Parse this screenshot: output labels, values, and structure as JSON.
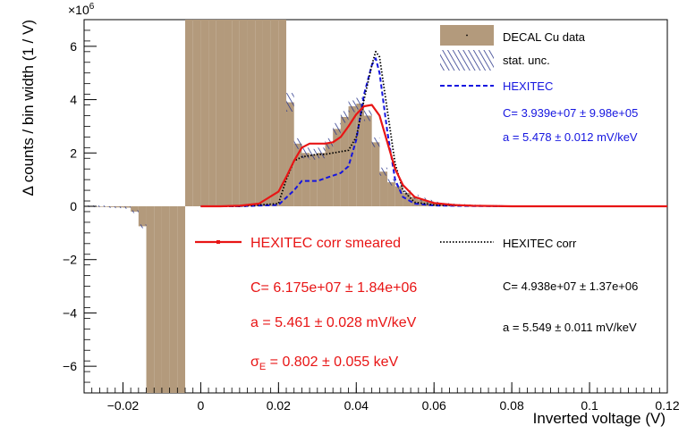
{
  "chart_data": {
    "type": "histogram",
    "xlabel": "Inverted voltage (V)",
    "ylabel": "Δ counts / bin width (1 / V)",
    "y_exponent_label": "×10",
    "y_exponent_power": "6",
    "xlim": [
      -0.03,
      0.12
    ],
    "ylim": [
      -7.0,
      7.0
    ],
    "y_unit_scale": 1000000,
    "x_ticks": [
      -0.02,
      0,
      0.02,
      0.04,
      0.06,
      0.08,
      0.1,
      0.12
    ],
    "x_tick_labels": [
      "−0.02",
      "0",
      "0.02",
      "0.04",
      "0.06",
      "0.08",
      "0.1",
      "0.12"
    ],
    "y_ticks": [
      -6,
      -4,
      -2,
      0,
      2,
      4,
      6
    ],
    "y_tick_labels": [
      "−6",
      "−4",
      "−2",
      "0",
      "2",
      "4",
      "6"
    ],
    "data_histogram": {
      "name": "DECAL Cu data",
      "color": "#b39a7c",
      "bin_width": 0.002,
      "bin_starts": [
        -0.03,
        -0.028,
        -0.026,
        -0.024,
        -0.022,
        -0.02,
        -0.018,
        -0.016,
        -0.014,
        -0.012,
        -0.01,
        -0.008,
        -0.006,
        -0.004,
        -0.002,
        0,
        0.002,
        0.004,
        0.006,
        0.008,
        0.01,
        0.012,
        0.014,
        0.016,
        0.018,
        0.02,
        0.022,
        0.024,
        0.026,
        0.028,
        0.03,
        0.032,
        0.034,
        0.036,
        0.038,
        0.04,
        0.042,
        0.044,
        0.046,
        0.048,
        0.05,
        0.052,
        0.054,
        0.056,
        0.058,
        0.06,
        0.062,
        0.064,
        0.066,
        0.068,
        0.07,
        0.072
      ],
      "values": [
        0,
        0,
        0,
        -0.03,
        -0.04,
        -0.05,
        -0.2,
        -0.75,
        -7,
        -7,
        -7,
        -7,
        -7,
        7,
        7,
        7,
        7,
        7,
        7,
        7,
        7,
        7,
        7,
        7,
        7,
        7,
        3.9,
        2.35,
        2.0,
        1.95,
        2.0,
        2.35,
        2.9,
        3.35,
        3.75,
        3.85,
        3.4,
        2.4,
        1.3,
        0.9,
        0.75,
        0.5,
        0.35,
        0.25,
        0.18,
        0.12,
        0.08,
        0.06,
        0.05,
        0.04,
        0.03,
        0.02
      ],
      "uncertainty": [
        0.03,
        0.03,
        0.03,
        0.03,
        0.03,
        0.04,
        0.05,
        0.07,
        0,
        0,
        0,
        0,
        0,
        0,
        0,
        0,
        0,
        0,
        0,
        0,
        0,
        0,
        0,
        0,
        0,
        0,
        0.35,
        0.2,
        0.2,
        0.2,
        0.2,
        0.2,
        0.22,
        0.22,
        0.22,
        0.22,
        0.2,
        0.18,
        0.15,
        0.12,
        0.1,
        0.09,
        0.08,
        0.07,
        0.06,
        0.05,
        0.04,
        0.04,
        0.03,
        0.03,
        0.03,
        0.03
      ]
    },
    "stat_unc_name": "stat. unc.",
    "stat_unc_color": "#2e3a8c",
    "series": [
      {
        "name": "HEXITEC",
        "style": "dashed",
        "color": "#1515e0",
        "x": [
          0.0,
          0.01,
          0.02,
          0.024,
          0.026,
          0.028,
          0.03,
          0.032,
          0.034,
          0.036,
          0.038,
          0.04,
          0.042,
          0.044,
          0.045,
          0.046,
          0.048,
          0.05,
          0.052,
          0.055,
          0.06,
          0.07,
          0.08,
          0.1,
          0.12
        ],
        "y": [
          0,
          0,
          0.05,
          0.6,
          0.95,
          0.95,
          0.95,
          1.05,
          1.15,
          1.25,
          1.5,
          2.5,
          4.2,
          5.3,
          5.55,
          5.0,
          2.8,
          1.0,
          0.35,
          0.1,
          0.03,
          0.01,
          0,
          0,
          0
        ]
      },
      {
        "name": "HEXITEC corr",
        "style": "dotted",
        "color": "#000000",
        "x": [
          0.0,
          0.01,
          0.02,
          0.022,
          0.024,
          0.026,
          0.028,
          0.03,
          0.032,
          0.034,
          0.036,
          0.038,
          0.04,
          0.042,
          0.044,
          0.045,
          0.046,
          0.048,
          0.05,
          0.052,
          0.055,
          0.06,
          0.07,
          0.08,
          0.1,
          0.12
        ],
        "y": [
          0,
          0,
          0.1,
          1.0,
          1.7,
          1.85,
          1.9,
          1.95,
          1.95,
          2.0,
          2.05,
          2.1,
          2.6,
          4.0,
          5.3,
          5.8,
          5.6,
          3.6,
          1.6,
          0.6,
          0.15,
          0.05,
          0.02,
          0,
          0,
          0
        ]
      },
      {
        "name": "HEXITEC corr smeared",
        "style": "solid",
        "color": "#e81515",
        "x": [
          0.0,
          0.005,
          0.01,
          0.015,
          0.02,
          0.022,
          0.024,
          0.026,
          0.028,
          0.03,
          0.032,
          0.034,
          0.036,
          0.038,
          0.04,
          0.042,
          0.044,
          0.046,
          0.048,
          0.05,
          0.052,
          0.055,
          0.06,
          0.065,
          0.07,
          0.08,
          0.1,
          0.12
        ],
        "y": [
          0,
          0,
          0.02,
          0.1,
          0.55,
          1.1,
          1.7,
          2.2,
          2.35,
          2.35,
          2.35,
          2.4,
          2.6,
          3.0,
          3.45,
          3.75,
          3.8,
          3.4,
          2.4,
          1.4,
          0.8,
          0.35,
          0.12,
          0.05,
          0.02,
          0,
          0,
          0
        ]
      }
    ],
    "legend_top": {
      "position": "top-right",
      "entries": [
        "DECAL Cu data",
        "stat. unc.",
        "HEXITEC"
      ],
      "fit_lines": [
        "C= 3.939e+07 ± 9.98e+05",
        "a = 5.478 ± 0.012 mV/keV"
      ]
    },
    "legend_smeared": {
      "position": "bottom-center",
      "entry": "HEXITEC corr smeared",
      "fit_lines": [
        "C= 6.175e+07 ± 1.84e+06",
        "a = 5.461 ± 0.028 mV/keV"
      ],
      "sigma_symbol": "σ",
      "sigma_subscript": "E",
      "sigma_value": " = 0.802 ± 0.055 keV"
    },
    "legend_corr": {
      "position": "bottom-right",
      "entry": "HEXITEC corr",
      "fit_lines": [
        "C= 4.938e+07 ± 1.37e+06",
        "a = 5.549 ± 0.011 mV/keV"
      ]
    }
  }
}
